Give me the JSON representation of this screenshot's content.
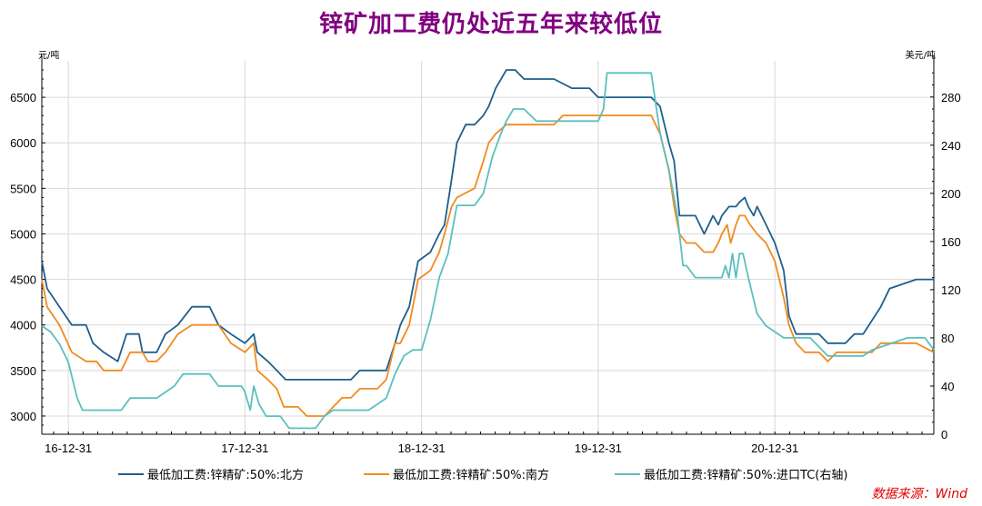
{
  "chart_data": {
    "type": "line",
    "title": "锌矿加工费仍处近五年来较低位",
    "y_left_unit": "元/吨",
    "y_right_unit": "美元/吨",
    "x_ticks": [
      "16-12-31",
      "17-12-31",
      "18-12-31",
      "19-12-31",
      "20-12-31"
    ],
    "x_tick_positions": [
      2017.0,
      2018.0,
      2019.0,
      2020.0,
      2021.0
    ],
    "xlim": [
      2016.85,
      2021.9
    ],
    "y_left_ticks": [
      3000,
      3500,
      4000,
      4500,
      5000,
      5500,
      6000,
      6500
    ],
    "y_left_range": [
      2800,
      6900
    ],
    "y_right_ticks": [
      0,
      40,
      80,
      120,
      160,
      200,
      240,
      280
    ],
    "y_right_range": [
      0,
      310
    ],
    "legend_position": "bottom",
    "series": [
      {
        "name": "最低加工费:锌精矿:50%:北方",
        "axis": "left",
        "color": "#1f5f8b",
        "points": [
          [
            2016.85,
            4700
          ],
          [
            2016.88,
            4400
          ],
          [
            2016.95,
            4200
          ],
          [
            2017.02,
            4000
          ],
          [
            2017.1,
            4000
          ],
          [
            2017.14,
            3800
          ],
          [
            2017.2,
            3700
          ],
          [
            2017.28,
            3600
          ],
          [
            2017.33,
            3900
          ],
          [
            2017.4,
            3900
          ],
          [
            2017.42,
            3700
          ],
          [
            2017.5,
            3700
          ],
          [
            2017.55,
            3900
          ],
          [
            2017.62,
            4000
          ],
          [
            2017.7,
            4200
          ],
          [
            2017.8,
            4200
          ],
          [
            2017.85,
            4000
          ],
          [
            2017.92,
            3900
          ],
          [
            2018.0,
            3800
          ],
          [
            2018.05,
            3900
          ],
          [
            2018.07,
            3700
          ],
          [
            2018.13,
            3600
          ],
          [
            2018.18,
            3500
          ],
          [
            2018.23,
            3400
          ],
          [
            2018.3,
            3400
          ],
          [
            2018.45,
            3400
          ],
          [
            2018.6,
            3400
          ],
          [
            2018.65,
            3500
          ],
          [
            2018.8,
            3500
          ],
          [
            2018.85,
            3800
          ],
          [
            2018.88,
            4000
          ],
          [
            2018.93,
            4200
          ],
          [
            2018.98,
            4700
          ],
          [
            2019.05,
            4800
          ],
          [
            2019.1,
            5000
          ],
          [
            2019.13,
            5100
          ],
          [
            2019.17,
            5600
          ],
          [
            2019.2,
            6000
          ],
          [
            2019.25,
            6200
          ],
          [
            2019.3,
            6200
          ],
          [
            2019.35,
            6300
          ],
          [
            2019.38,
            6400
          ],
          [
            2019.42,
            6600
          ],
          [
            2019.48,
            6800
          ],
          [
            2019.53,
            6800
          ],
          [
            2019.58,
            6700
          ],
          [
            2019.65,
            6700
          ],
          [
            2019.75,
            6700
          ],
          [
            2019.85,
            6600
          ],
          [
            2019.95,
            6600
          ],
          [
            2020.0,
            6500
          ],
          [
            2020.1,
            6500
          ],
          [
            2020.2,
            6500
          ],
          [
            2020.3,
            6500
          ],
          [
            2020.35,
            6400
          ],
          [
            2020.4,
            6000
          ],
          [
            2020.43,
            5800
          ],
          [
            2020.46,
            5200
          ],
          [
            2020.5,
            5200
          ],
          [
            2020.55,
            5200
          ],
          [
            2020.6,
            5000
          ],
          [
            2020.65,
            5200
          ],
          [
            2020.68,
            5100
          ],
          [
            2020.7,
            5200
          ],
          [
            2020.74,
            5300
          ],
          [
            2020.78,
            5300
          ],
          [
            2020.8,
            5350
          ],
          [
            2020.83,
            5400
          ],
          [
            2020.85,
            5300
          ],
          [
            2020.88,
            5200
          ],
          [
            2020.9,
            5300
          ],
          [
            2020.95,
            5100
          ],
          [
            2021.0,
            4900
          ],
          [
            2021.05,
            4600
          ],
          [
            2021.08,
            4100
          ],
          [
            2021.12,
            3900
          ],
          [
            2021.25,
            3900
          ],
          [
            2021.3,
            3800
          ],
          [
            2021.4,
            3800
          ],
          [
            2021.45,
            3900
          ],
          [
            2021.5,
            3900
          ],
          [
            2021.6,
            4200
          ],
          [
            2021.65,
            4400
          ],
          [
            2021.8,
            4500
          ],
          [
            2021.9,
            4500
          ]
        ]
      },
      {
        "name": "最低加工费:锌精矿:50%:南方",
        "axis": "left",
        "color": "#f28a1e",
        "points": [
          [
            2016.85,
            4500
          ],
          [
            2016.88,
            4200
          ],
          [
            2016.95,
            4000
          ],
          [
            2017.02,
            3700
          ],
          [
            2017.1,
            3600
          ],
          [
            2017.16,
            3600
          ],
          [
            2017.2,
            3500
          ],
          [
            2017.3,
            3500
          ],
          [
            2017.35,
            3700
          ],
          [
            2017.42,
            3700
          ],
          [
            2017.45,
            3600
          ],
          [
            2017.5,
            3600
          ],
          [
            2017.55,
            3700
          ],
          [
            2017.62,
            3900
          ],
          [
            2017.7,
            4000
          ],
          [
            2017.85,
            4000
          ],
          [
            2017.92,
            3800
          ],
          [
            2018.0,
            3700
          ],
          [
            2018.05,
            3800
          ],
          [
            2018.07,
            3500
          ],
          [
            2018.13,
            3400
          ],
          [
            2018.18,
            3300
          ],
          [
            2018.22,
            3100
          ],
          [
            2018.3,
            3100
          ],
          [
            2018.35,
            3000
          ],
          [
            2018.45,
            3000
          ],
          [
            2018.5,
            3100
          ],
          [
            2018.55,
            3200
          ],
          [
            2018.6,
            3200
          ],
          [
            2018.65,
            3300
          ],
          [
            2018.7,
            3300
          ],
          [
            2018.75,
            3300
          ],
          [
            2018.8,
            3400
          ],
          [
            2018.85,
            3800
          ],
          [
            2018.88,
            3800
          ],
          [
            2018.93,
            4000
          ],
          [
            2018.98,
            4500
          ],
          [
            2019.05,
            4600
          ],
          [
            2019.1,
            4800
          ],
          [
            2019.13,
            5000
          ],
          [
            2019.17,
            5300
          ],
          [
            2019.2,
            5400
          ],
          [
            2019.3,
            5500
          ],
          [
            2019.35,
            5800
          ],
          [
            2019.38,
            6000
          ],
          [
            2019.42,
            6100
          ],
          [
            2019.48,
            6200
          ],
          [
            2019.55,
            6200
          ],
          [
            2019.65,
            6200
          ],
          [
            2019.75,
            6200
          ],
          [
            2019.8,
            6300
          ],
          [
            2019.85,
            6300
          ],
          [
            2019.9,
            6300
          ],
          [
            2019.95,
            6300
          ],
          [
            2020.0,
            6300
          ],
          [
            2020.1,
            6300
          ],
          [
            2020.2,
            6300
          ],
          [
            2020.3,
            6300
          ],
          [
            2020.35,
            6100
          ],
          [
            2020.4,
            5700
          ],
          [
            2020.43,
            5300
          ],
          [
            2020.46,
            5000
          ],
          [
            2020.5,
            4900
          ],
          [
            2020.55,
            4900
          ],
          [
            2020.6,
            4800
          ],
          [
            2020.65,
            4800
          ],
          [
            2020.68,
            4900
          ],
          [
            2020.7,
            5000
          ],
          [
            2020.73,
            5100
          ],
          [
            2020.75,
            4900
          ],
          [
            2020.78,
            5100
          ],
          [
            2020.8,
            5200
          ],
          [
            2020.83,
            5200
          ],
          [
            2020.86,
            5100
          ],
          [
            2020.9,
            5000
          ],
          [
            2020.95,
            4900
          ],
          [
            2021.0,
            4700
          ],
          [
            2021.05,
            4300
          ],
          [
            2021.08,
            4000
          ],
          [
            2021.12,
            3800
          ],
          [
            2021.17,
            3700
          ],
          [
            2021.25,
            3700
          ],
          [
            2021.3,
            3600
          ],
          [
            2021.35,
            3700
          ],
          [
            2021.45,
            3700
          ],
          [
            2021.5,
            3700
          ],
          [
            2021.55,
            3700
          ],
          [
            2021.6,
            3800
          ],
          [
            2021.7,
            3800
          ],
          [
            2021.8,
            3800
          ],
          [
            2021.9,
            3700
          ]
        ]
      },
      {
        "name": "最低加工费:锌精矿:50%:进口TC(右轴)",
        "axis": "right",
        "color": "#5bbfbf",
        "points": [
          [
            2016.85,
            90
          ],
          [
            2016.9,
            85
          ],
          [
            2016.95,
            75
          ],
          [
            2017.0,
            60
          ],
          [
            2017.05,
            30
          ],
          [
            2017.08,
            20
          ],
          [
            2017.15,
            20
          ],
          [
            2017.2,
            20
          ],
          [
            2017.3,
            20
          ],
          [
            2017.35,
            30
          ],
          [
            2017.45,
            30
          ],
          [
            2017.5,
            30
          ],
          [
            2017.55,
            35
          ],
          [
            2017.6,
            40
          ],
          [
            2017.65,
            50
          ],
          [
            2017.75,
            50
          ],
          [
            2017.8,
            50
          ],
          [
            2017.85,
            40
          ],
          [
            2017.95,
            40
          ],
          [
            2017.98,
            40
          ],
          [
            2018.0,
            35
          ],
          [
            2018.03,
            20
          ],
          [
            2018.05,
            40
          ],
          [
            2018.08,
            25
          ],
          [
            2018.12,
            15
          ],
          [
            2018.2,
            15
          ],
          [
            2018.25,
            5
          ],
          [
            2018.35,
            5
          ],
          [
            2018.4,
            5
          ],
          [
            2018.45,
            15
          ],
          [
            2018.5,
            20
          ],
          [
            2018.6,
            20
          ],
          [
            2018.7,
            20
          ],
          [
            2018.8,
            30
          ],
          [
            2018.85,
            50
          ],
          [
            2018.9,
            65
          ],
          [
            2018.95,
            70
          ],
          [
            2019.0,
            70
          ],
          [
            2019.05,
            95
          ],
          [
            2019.1,
            130
          ],
          [
            2019.15,
            150
          ],
          [
            2019.2,
            190
          ],
          [
            2019.3,
            190
          ],
          [
            2019.35,
            200
          ],
          [
            2019.4,
            230
          ],
          [
            2019.45,
            250
          ],
          [
            2019.48,
            260
          ],
          [
            2019.52,
            270
          ],
          [
            2019.58,
            270
          ],
          [
            2019.65,
            260
          ],
          [
            2019.75,
            260
          ],
          [
            2019.85,
            260
          ],
          [
            2019.95,
            260
          ],
          [
            2020.0,
            260
          ],
          [
            2020.03,
            270
          ],
          [
            2020.05,
            300
          ],
          [
            2020.15,
            300
          ],
          [
            2020.25,
            300
          ],
          [
            2020.3,
            300
          ],
          [
            2020.35,
            250
          ],
          [
            2020.4,
            220
          ],
          [
            2020.45,
            180
          ],
          [
            2020.48,
            140
          ],
          [
            2020.5,
            140
          ],
          [
            2020.55,
            130
          ],
          [
            2020.6,
            130
          ],
          [
            2020.65,
            130
          ],
          [
            2020.7,
            130
          ],
          [
            2020.72,
            140
          ],
          [
            2020.74,
            130
          ],
          [
            2020.76,
            150
          ],
          [
            2020.78,
            130
          ],
          [
            2020.8,
            150
          ],
          [
            2020.82,
            150
          ],
          [
            2020.85,
            130
          ],
          [
            2020.9,
            100
          ],
          [
            2020.95,
            90
          ],
          [
            2021.0,
            85
          ],
          [
            2021.05,
            80
          ],
          [
            2021.1,
            80
          ],
          [
            2021.2,
            80
          ],
          [
            2021.3,
            65
          ],
          [
            2021.4,
            65
          ],
          [
            2021.5,
            65
          ],
          [
            2021.55,
            70
          ],
          [
            2021.65,
            75
          ],
          [
            2021.75,
            80
          ],
          [
            2021.85,
            80
          ],
          [
            2021.9,
            70
          ]
        ]
      }
    ]
  },
  "source_note": "数据来源：Wind"
}
